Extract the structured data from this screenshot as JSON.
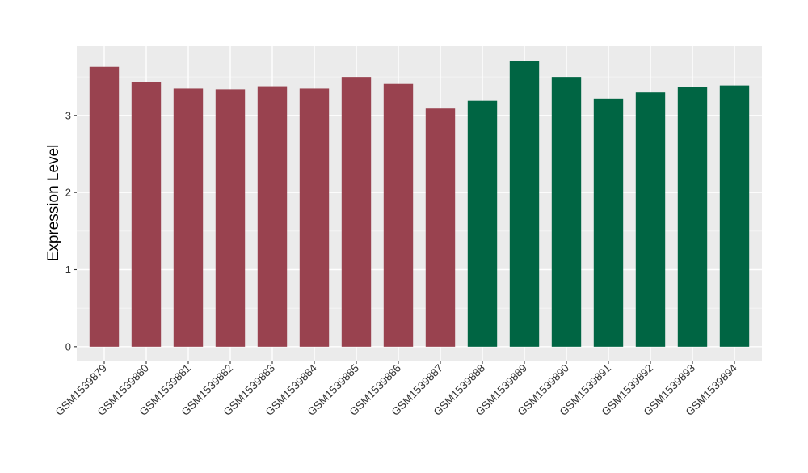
{
  "chart_data": {
    "type": "bar",
    "ylabel": "Expression Level",
    "xlabel": "",
    "title": "",
    "ylim": [
      -0.18,
      3.9
    ],
    "yticks": [
      0,
      1,
      2,
      3
    ],
    "grid": true,
    "panel_background": "#EBEBEB",
    "gridline_color": "#FFFFFF",
    "categories": [
      "GSM1539879",
      "GSM1539880",
      "GSM1539881",
      "GSM1539882",
      "GSM1539883",
      "GSM1539884",
      "GSM1539885",
      "GSM1539886",
      "GSM1539887",
      "GSM1539888",
      "GSM1539889",
      "GSM1539890",
      "GSM1539891",
      "GSM1539892",
      "GSM1539893",
      "GSM1539894"
    ],
    "values": [
      3.63,
      3.43,
      3.35,
      3.34,
      3.38,
      3.35,
      3.5,
      3.41,
      3.09,
      3.19,
      3.71,
      3.5,
      3.22,
      3.3,
      3.37,
      3.39
    ],
    "bar_colors": [
      "#99424F",
      "#99424F",
      "#99424F",
      "#99424F",
      "#99424F",
      "#99424F",
      "#99424F",
      "#99424F",
      "#99424F",
      "#006543",
      "#006543",
      "#006543",
      "#006543",
      "#006543",
      "#006543",
      "#006543"
    ]
  }
}
